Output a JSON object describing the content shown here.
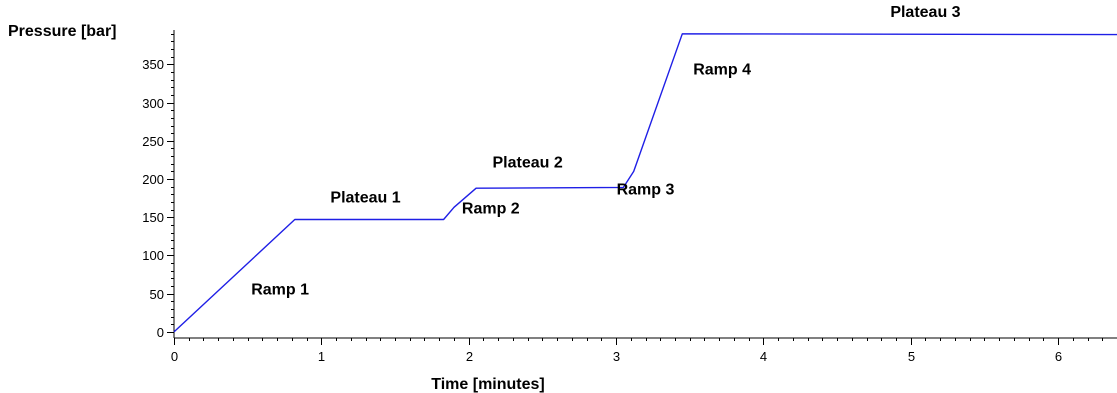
{
  "chart_data": {
    "type": "line",
    "title": "",
    "xlabel": "Time [minutes]",
    "ylabel": "Pressure [bar]",
    "xlim": [
      0,
      6.4
    ],
    "ylim": [
      -8,
      395
    ],
    "x_ticks": [
      0,
      1,
      2,
      3,
      4,
      5,
      6
    ],
    "x_tick_labels": [
      "0",
      "1",
      "2",
      "3",
      "4",
      "5",
      "6"
    ],
    "y_ticks": [
      0,
      50,
      100,
      150,
      200,
      250,
      300,
      350
    ],
    "y_tick_labels": [
      "0",
      "50",
      "100",
      "150",
      "200",
      "250",
      "300",
      "350"
    ],
    "grid": false,
    "legend": "none",
    "colors": {
      "line": "#1f1fe6",
      "axes": "#000000"
    },
    "series": [
      {
        "x": [
          0,
          0.82,
          1.83,
          1.9,
          2.05,
          3.05,
          3.12,
          3.45,
          6.4
        ],
        "y": [
          0,
          147,
          147,
          163,
          188,
          189,
          210,
          390,
          389
        ]
      }
    ],
    "annotations": [
      {
        "text": "Plateau 3",
        "x": 5.1,
        "y": 412
      },
      {
        "text": "Ramp 4",
        "x": 3.72,
        "y": 337
      },
      {
        "text": "Plateau 2",
        "x": 2.4,
        "y": 215
      },
      {
        "text": "Ramp 3",
        "x": 3.2,
        "y": 180
      },
      {
        "text": "Plateau 1",
        "x": 1.3,
        "y": 169
      },
      {
        "text": "Ramp 2",
        "x": 2.15,
        "y": 155
      },
      {
        "text": "Ramp 1",
        "x": 0.72,
        "y": 49
      }
    ]
  }
}
